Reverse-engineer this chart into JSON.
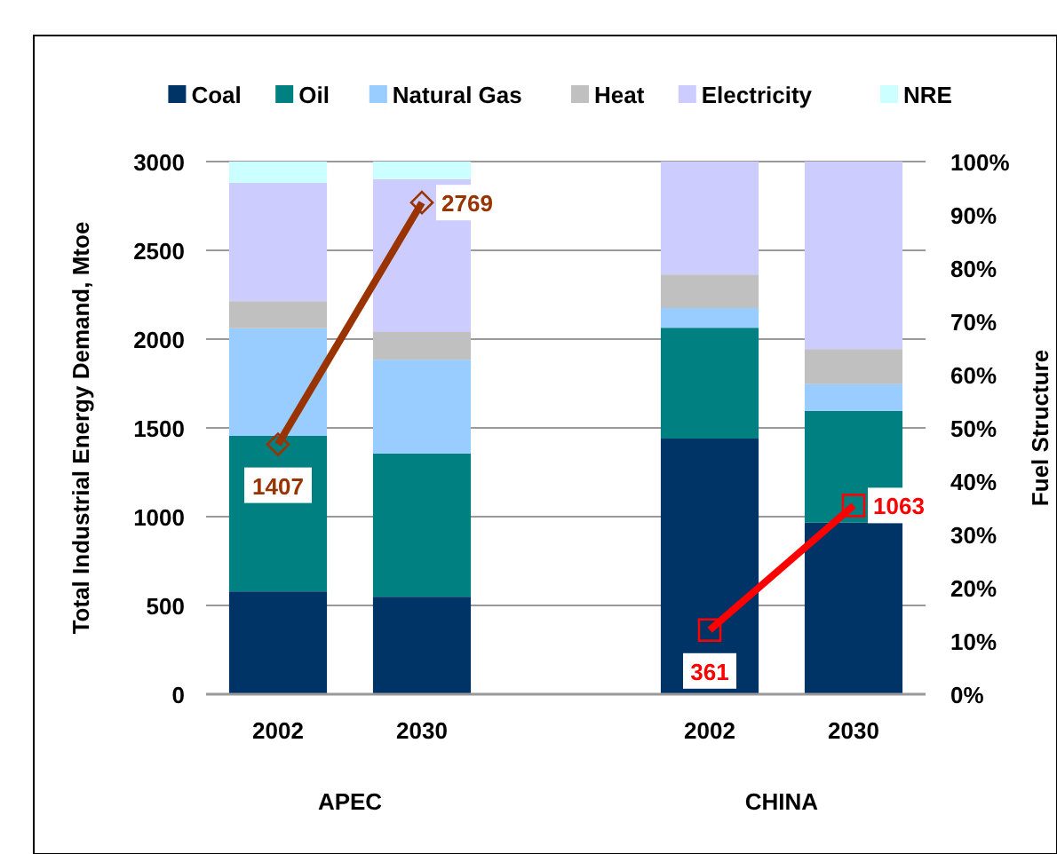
{
  "chart_data": {
    "type": "bar",
    "stacked": true,
    "categories": [
      "2002",
      "2030",
      null,
      "2002",
      "2030"
    ],
    "ylabel": "Total Industrial Energy Demand, Mtoe",
    "y2label": "Fuel Structure",
    "ylim": [
      0,
      3000
    ],
    "yticks": [
      0,
      500,
      1000,
      1500,
      2000,
      2500,
      3000
    ],
    "y2lim": [
      0,
      100
    ],
    "y2ticks": [
      {
        "value": 0,
        "label": "0%"
      },
      {
        "value": 10,
        "label": "10%"
      },
      {
        "value": 20,
        "label": "20%"
      },
      {
        "value": 30,
        "label": "30%"
      },
      {
        "value": 40,
        "label": "40%"
      },
      {
        "value": 50,
        "label": "50%"
      },
      {
        "value": 60,
        "label": "60%"
      },
      {
        "value": 70,
        "label": "70%"
      },
      {
        "value": 80,
        "label": "80%"
      },
      {
        "value": 90,
        "label": "90%"
      },
      {
        "value": 100,
        "label": "100%"
      }
    ],
    "grid": "y",
    "legend": "top",
    "annotations": [
      "APEC",
      "CHINA"
    ],
    "series": [
      {
        "name": "Coal",
        "color": "#003366",
        "axis": "y2",
        "values": [
          19.3,
          18.3,
          null,
          48,
          32.2
        ]
      },
      {
        "name": "Oil",
        "color": "#008080",
        "axis": "y2",
        "values": [
          29.2,
          26.9,
          null,
          20.8,
          21
        ]
      },
      {
        "name": "Natural Gas",
        "color": "#99ccff",
        "axis": "y2",
        "values": [
          20.2,
          17.6,
          null,
          3.7,
          5
        ]
      },
      {
        "name": "Heat",
        "color": "#c0c0c0",
        "axis": "y2",
        "values": [
          5.1,
          5.2,
          null,
          6.3,
          6.6
        ]
      },
      {
        "name": "Electricity",
        "color": "#ccccff",
        "axis": "y2",
        "values": [
          22.2,
          28.7,
          null,
          21.2,
          35.2
        ]
      },
      {
        "name": "NRE",
        "color": "#ccffff",
        "axis": "y2",
        "values": [
          4,
          3.3,
          null,
          0,
          0
        ]
      },
      {
        "type": "line",
        "color": "#993300",
        "marker": "diamond",
        "values": [
          1407,
          2769,
          null,
          null,
          null
        ],
        "value_labels": [
          "1407",
          "2769",
          null,
          null,
          null
        ]
      },
      {
        "type": "line",
        "color": "#ff0000",
        "marker": "square",
        "values": [
          null,
          null,
          null,
          361,
          1063
        ],
        "value_labels": [
          null,
          null,
          null,
          "361",
          "1063"
        ]
      }
    ]
  }
}
